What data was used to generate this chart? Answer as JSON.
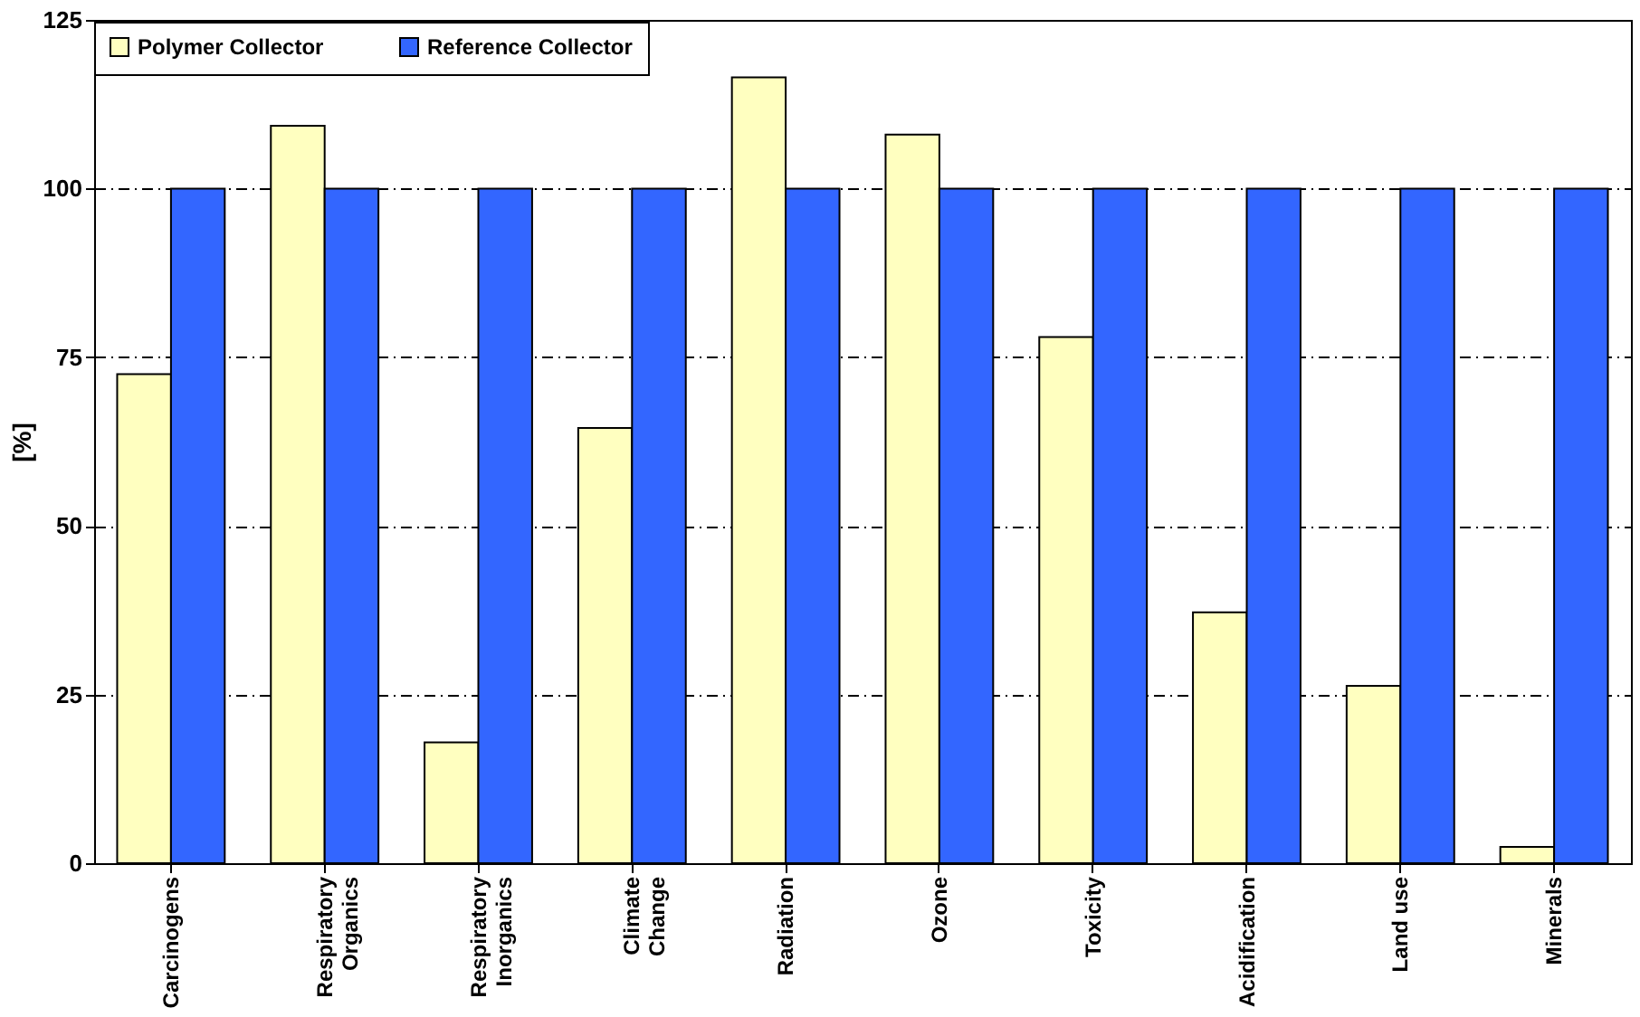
{
  "chart_data": {
    "type": "bar",
    "ylabel": "[%]",
    "categories": [
      "Carcinogens",
      "Respiratory\nOrganics",
      "Respiratory\nInorganics",
      "Climate\nChange",
      "Radiation",
      "Ozone",
      "Toxicity",
      "Acidification",
      "Land use",
      "Minerals"
    ],
    "series": [
      {
        "name": "Polymer Collector",
        "color": "#ffffc0",
        "values": [
          72.5,
          109.3,
          17.9,
          64.5,
          116.5,
          108,
          78,
          37.2,
          26.3,
          2.4
        ]
      },
      {
        "name": "Reference Collector",
        "color": "#3366ff",
        "values": [
          100,
          100,
          100,
          100,
          100,
          100,
          100,
          100,
          100,
          100
        ]
      }
    ],
    "ylim": [
      0,
      125
    ],
    "yticks": [
      0,
      25,
      50,
      75,
      100,
      125
    ],
    "grid": "y",
    "legend": "top"
  }
}
